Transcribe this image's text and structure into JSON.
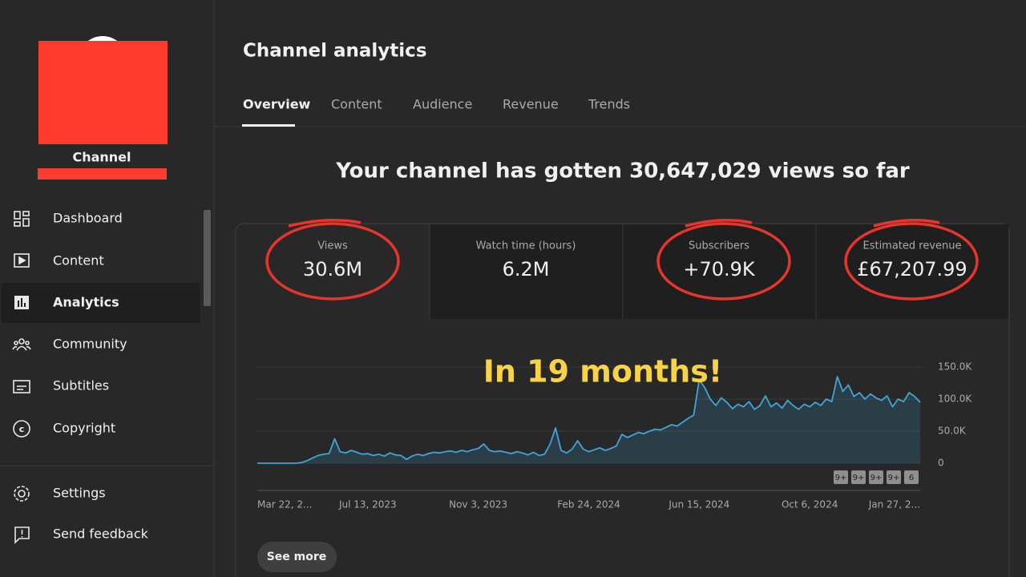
{
  "sidebar": {
    "channel_name": "Channel",
    "nav": [
      "Dashboard",
      "Content",
      "Analytics",
      "Community",
      "Subtitles",
      "Copyright"
    ],
    "footer_nav": [
      "Settings",
      "Send feedback"
    ]
  },
  "header": {
    "title": "Channel analytics",
    "tabs": [
      "Overview",
      "Content",
      "Audience",
      "Revenue",
      "Trends"
    ]
  },
  "headline": "Your channel has gotten 30,647,029 views so far",
  "metrics": [
    {
      "label": "Views",
      "value": "30.6M"
    },
    {
      "label": "Watch time (hours)",
      "value": "6.2M"
    },
    {
      "label": "Subscribers",
      "value": "+70.9K"
    },
    {
      "label": "Estimated revenue",
      "value": "£67,207.99"
    }
  ],
  "annotation": "In 19 months!",
  "button": "See more",
  "chart_data": {
    "type": "line",
    "categories": [
      "Mar 22, 2...",
      null,
      null,
      null,
      null,
      null,
      null,
      null,
      null,
      null,
      null,
      null,
      null,
      null,
      null,
      null,
      null,
      null,
      null,
      null,
      "Jul 13, 2023",
      null,
      null,
      null,
      null,
      null,
      null,
      null,
      null,
      null,
      null,
      null,
      null,
      null,
      null,
      null,
      null,
      null,
      null,
      null,
      "Nov 3, 2023",
      null,
      null,
      null,
      null,
      null,
      null,
      null,
      null,
      null,
      null,
      null,
      null,
      null,
      null,
      null,
      null,
      null,
      null,
      null,
      "Feb 24, 2024",
      null,
      null,
      null,
      null,
      null,
      null,
      null,
      null,
      null,
      null,
      null,
      null,
      null,
      null,
      null,
      null,
      null,
      null,
      null,
      "Jun 15, 2024",
      null,
      null,
      null,
      null,
      null,
      null,
      null,
      null,
      null,
      null,
      null,
      null,
      null,
      null,
      null,
      null,
      null,
      null,
      null,
      "Oct 6, 2024",
      null,
      null,
      null,
      null,
      null,
      null,
      null,
      null,
      null,
      null,
      null,
      null,
      null,
      null,
      null,
      null,
      null,
      null,
      null,
      "Jan 27, 2..."
    ],
    "series": [
      {
        "name": "Views",
        "color": "#3ea6d8",
        "values": [
          0,
          0,
          0,
          0,
          0,
          0,
          0,
          0,
          1000,
          4000,
          8000,
          12000,
          14000,
          15000,
          38000,
          18000,
          16000,
          20000,
          17000,
          14000,
          15000,
          12000,
          14000,
          11000,
          16000,
          13000,
          12000,
          6000,
          11000,
          14000,
          12000,
          15000,
          17000,
          16000,
          18000,
          19000,
          17000,
          20000,
          18000,
          21000,
          23000,
          30000,
          20000,
          18000,
          19000,
          17000,
          15000,
          18000,
          16000,
          13000,
          17000,
          12000,
          14000,
          30000,
          55000,
          20000,
          16000,
          22000,
          35000,
          22000,
          18000,
          21000,
          24000,
          20000,
          23000,
          27000,
          45000,
          40000,
          44000,
          48000,
          46000,
          50000,
          53000,
          52000,
          56000,
          60000,
          58000,
          64000,
          70000,
          75000,
          130000,
          118000,
          100000,
          90000,
          102000,
          95000,
          85000,
          92000,
          88000,
          96000,
          84000,
          90000,
          105000,
          88000,
          94000,
          86000,
          98000,
          90000,
          84000,
          92000,
          88000,
          95000,
          90000,
          100000,
          96000,
          135000,
          112000,
          122000,
          104000,
          110000,
          100000,
          108000,
          102000,
          98000,
          105000,
          88000,
          100000,
          96000,
          110000,
          104000,
          95000
        ]
      }
    ],
    "ylim": [
      0,
      150000
    ],
    "yticks": [
      0,
      {
        "value": 50000,
        "label": "50.0K"
      },
      {
        "value": 100000,
        "label": "100.0K"
      },
      {
        "value": 150000,
        "label": "150.0K"
      }
    ],
    "grid": true,
    "markers": [
      "9+",
      "9+",
      "9+",
      "9+",
      "6"
    ]
  }
}
